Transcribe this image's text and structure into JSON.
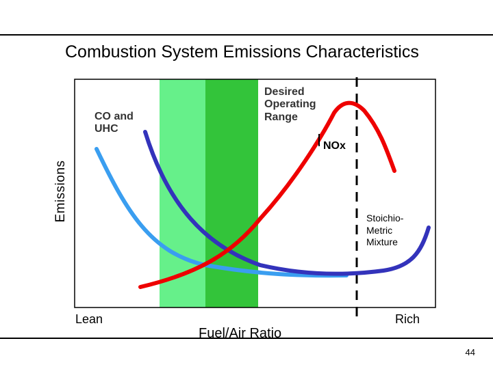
{
  "slide": {
    "title": "Combustion System Emissions Characteristics",
    "page_number": "44"
  },
  "diagram": {
    "y_axis_label": "Emissions",
    "x_axis_label": "Fuel/Air Ratio",
    "lean_label": "Lean",
    "rich_label": "Rich",
    "co_uhc_label": "CO and UHC",
    "desired_range_label": "Desired Operating Range",
    "nox_label": "NOx",
    "stoichiometric_label": "Stoichio-Metric Mixture",
    "colors": {
      "nox_curve": "#ee0000",
      "co_curve_light": "#3a9ef0",
      "co_curve_dark": "#3333bb",
      "band_light": "#66f08a",
      "band_dark": "#33c43a",
      "stoich_line": "#000000"
    }
  }
}
